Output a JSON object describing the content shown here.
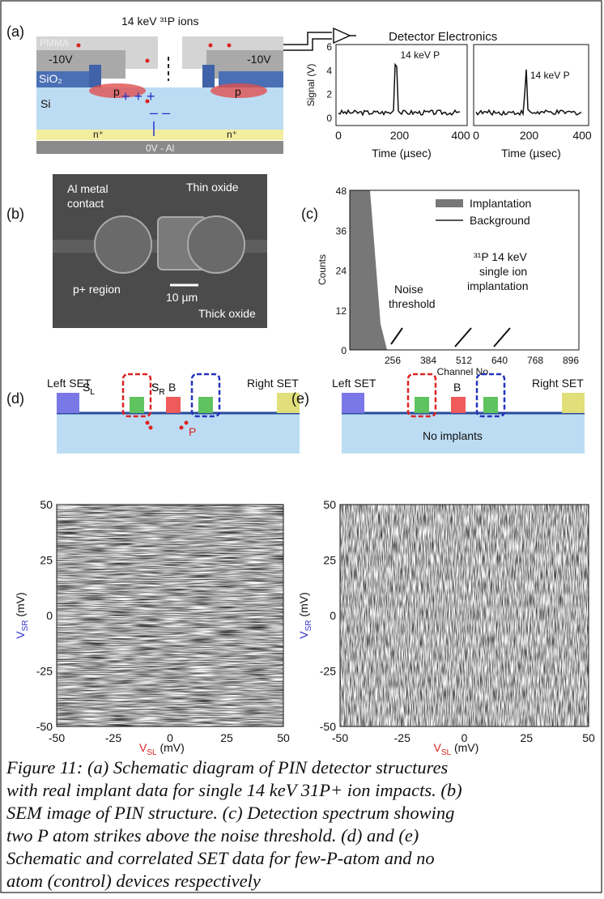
{
  "figure": {
    "panel_a": {
      "label": "(a)",
      "ions": "14 keV ³¹P ions",
      "pmma": "PMMA",
      "gate_left": "-10V",
      "gate_right": "-10V",
      "oxide": "SiO₂",
      "substrate": "Si",
      "p_left": "p",
      "p_right": "p",
      "n_left": "n⁺",
      "n_right": "n⁺",
      "back": "0V - Al",
      "electronics": "Detector Electronics",
      "ylabel": "Signal (V)",
      "yticks": [
        "0",
        "2",
        "4",
        "6"
      ],
      "plots": [
        {
          "peak_label": "14 keV P",
          "xticks": [
            "0",
            "200",
            "400"
          ],
          "xlabel": "Time (µsec)"
        },
        {
          "peak_label": "14 keV P",
          "xticks": [
            "0",
            "200",
            "400"
          ],
          "xlabel": "Time (µsec)"
        }
      ]
    },
    "panel_b": {
      "label": "(b)",
      "contact": [
        "Al metal",
        "contact"
      ],
      "thin_oxide": "Thin oxide",
      "scale": "10 µm",
      "p_region": "p+ region",
      "thick_oxide": "Thick oxide"
    },
    "panel_c": {
      "label": "(c)",
      "legend": [
        "Implantation",
        "Background"
      ],
      "ylabel": "Counts",
      "yticks": [
        "0",
        "12",
        "24",
        "36",
        "48"
      ],
      "xlabel": "Channel No.",
      "xticks": [
        "256",
        "384",
        "512",
        "640",
        "768",
        "896"
      ],
      "noise": [
        "Noise",
        "threshold"
      ],
      "implant": [
        "³¹P 14 keV",
        "single ion",
        "implantation"
      ]
    },
    "panel_d": {
      "label": "(d)",
      "left_set": "Left SET",
      "right_set": "Right SET",
      "s_left": {
        "main": "S",
        "sub": "L"
      },
      "barrier": "B",
      "s_right": {
        "main": "S",
        "sub": "R"
      },
      "donor": "P"
    },
    "panel_e": {
      "label": "(e)",
      "left_set": "Left SET",
      "right_set": "Right SET",
      "s_left": {
        "main": "S",
        "sub": "L"
      },
      "barrier": "B",
      "s_right": {
        "main": "S",
        "sub": "R"
      },
      "note": "No implants"
    },
    "maps": {
      "ylabel": {
        "main": "V",
        "sub": "SR",
        "unit": " (mV)"
      },
      "xlabel": {
        "main": "V",
        "sub": "SL",
        "unit": " (mV)"
      },
      "ticks": [
        "50",
        "25",
        "0",
        "-25",
        "-50"
      ],
      "xticks": [
        "-50",
        "-25",
        "0",
        "25",
        "50"
      ]
    },
    "caption": [
      "Figure 11: (a) Schematic diagram of PIN detector structures",
      "with real implant data for single 14 keV 31P+ ion impacts. (b)",
      "SEM image of PIN structure. (c) Detection spectrum showing",
      "two P atom strikes above the noise threshold. (d) and (e)",
      "Schematic and correlated SET data for few-P-atom and no",
      "atom (control) devices respectively"
    ]
  }
}
